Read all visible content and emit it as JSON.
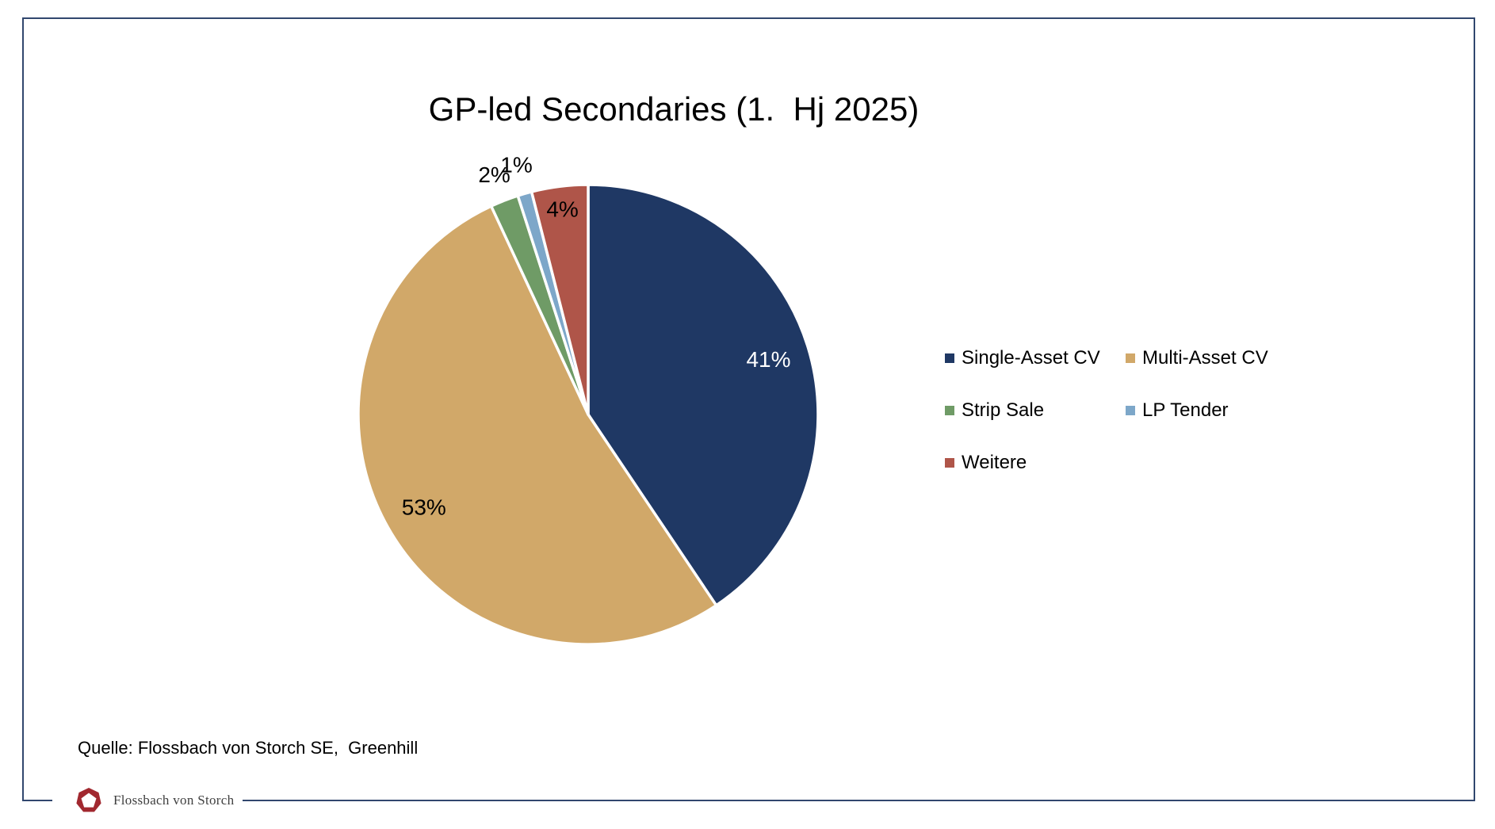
{
  "window": {
    "background": "#FFFFFF",
    "frame_color": "#31476E"
  },
  "chart_data": {
    "type": "pie",
    "title": "GP-led Secondaries (1.  Hj 2025)",
    "legend_position": "right",
    "labels": "percent",
    "slice_gap_color": "#FFFFFF",
    "start_angle_deg": 0,
    "series": [
      {
        "name": "Single-Asset CV",
        "value": 41,
        "label": "41%",
        "color": "#1F3864",
        "label_color": "#FFFFFF",
        "label_r": 0.82
      },
      {
        "name": "Multi-Asset CV",
        "value": 53,
        "label": "53%",
        "color": "#D1A869",
        "label_color": "#000000",
        "label_r": 0.82
      },
      {
        "name": "Strip Sale",
        "value": 2,
        "label": "2%",
        "color": "#6F9B66",
        "label_color": "#000000",
        "label_r": 1.12
      },
      {
        "name": "LP Tender",
        "value": 1,
        "label": "1%",
        "color": "#7DA7C9",
        "label_color": "#000000",
        "label_r": 1.13
      },
      {
        "name": "Weitere",
        "value": 4,
        "label": "4%",
        "color": "#AF5549",
        "label_color": "#000000",
        "label_r": 0.9
      }
    ]
  },
  "source_note": "Quelle: Flossbach von Storch SE,  Greenhill",
  "footer": {
    "logo_text": "Flossbach von Storch",
    "logo_color": "#A1282F"
  }
}
